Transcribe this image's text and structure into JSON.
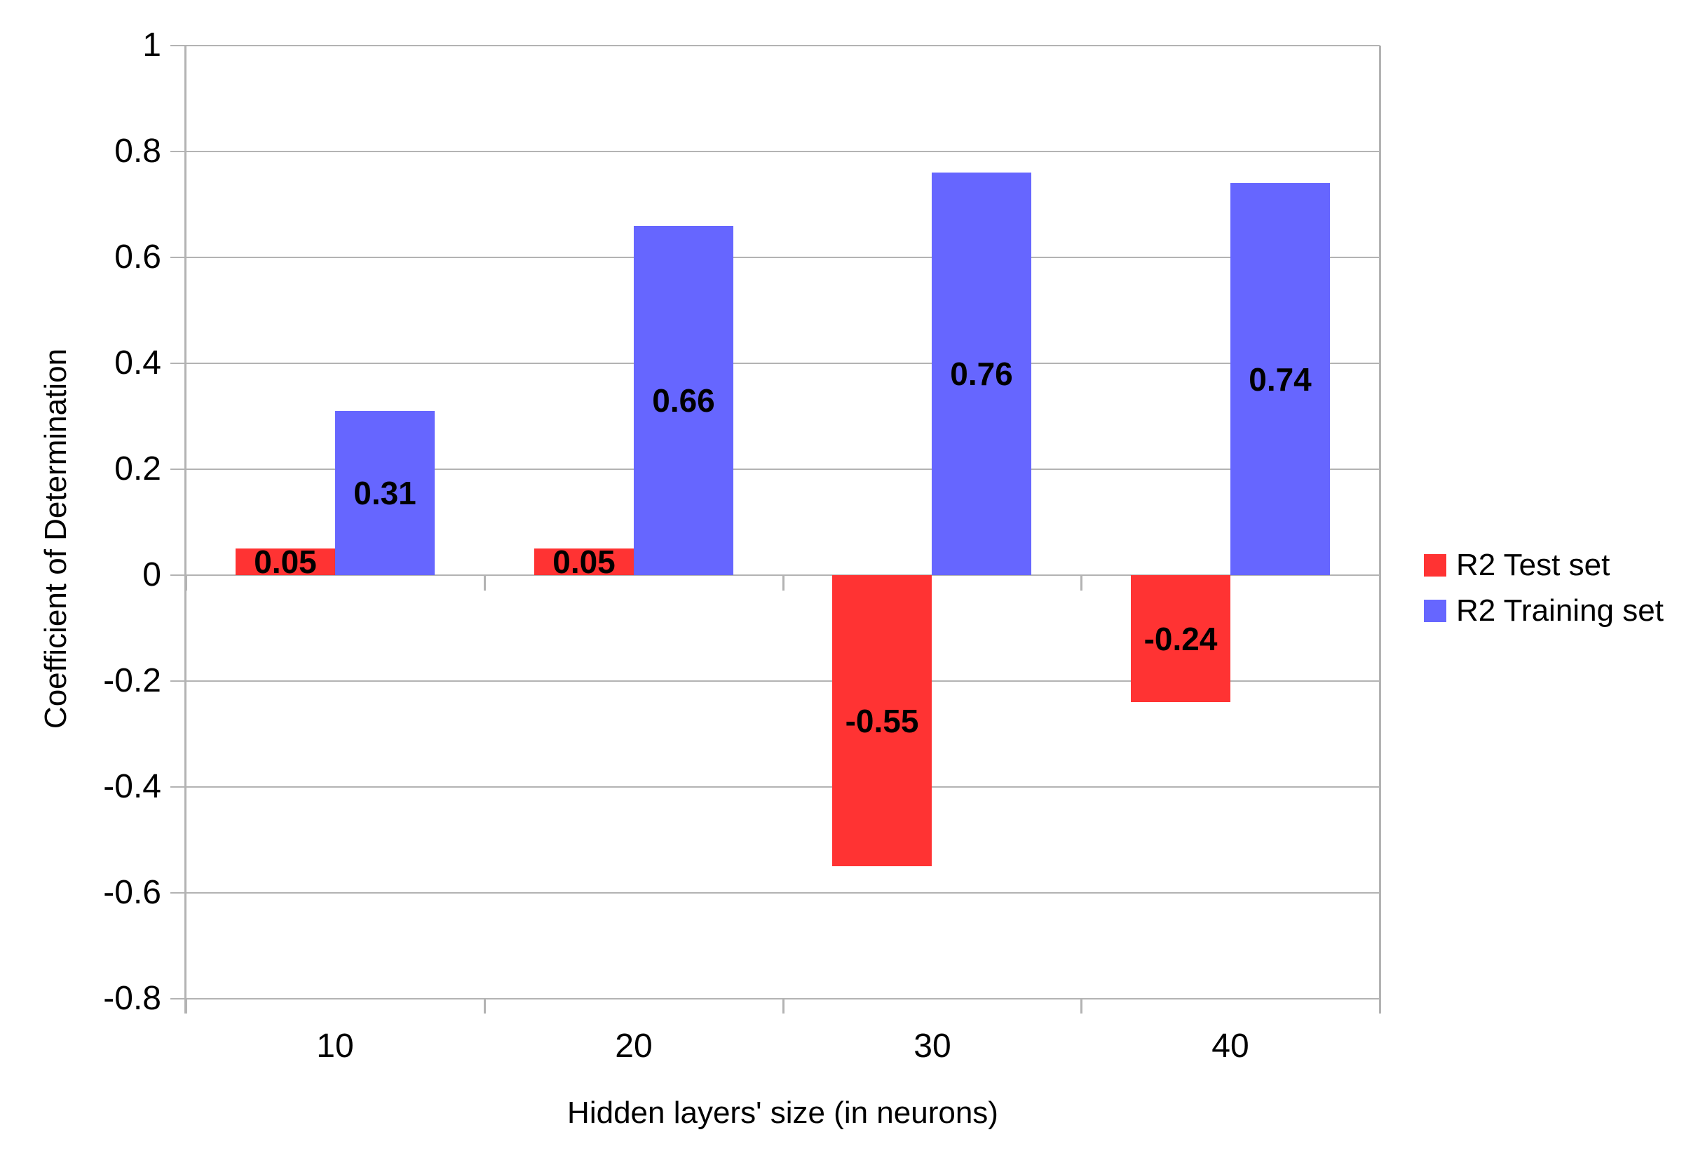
{
  "chart_data": {
    "type": "bar",
    "title": "",
    "xlabel": "Hidden layers' size (in neurons)",
    "ylabel": "Coefficient of Determination",
    "categories": [
      "10",
      "20",
      "30",
      "40"
    ],
    "series": [
      {
        "name": "R2 Test set",
        "color": "#ff3333",
        "values": [
          0.05,
          0.05,
          -0.55,
          -0.24
        ],
        "labels": [
          "0.05",
          "0.05",
          "-0.55",
          "-0.24"
        ]
      },
      {
        "name": "R2 Training set",
        "color": "#6666ff",
        "values": [
          0.31,
          0.66,
          0.76,
          0.74
        ],
        "labels": [
          "0.31",
          "0.66",
          "0.76",
          "0.74"
        ]
      }
    ],
    "y_axis": {
      "min": -0.8,
      "max": 1,
      "step": 0.2,
      "tick_labels": [
        "1",
        "0.8",
        "0.6",
        "0.4",
        "0.2",
        "0",
        "-0.2",
        "-0.4",
        "-0.6",
        "-0.8"
      ]
    },
    "grid": true,
    "legend_position": "right",
    "colors": {
      "grid": "#b3b3b3",
      "axis": "#b3b3b3",
      "background": "#ffffff",
      "text": "#000000"
    }
  }
}
